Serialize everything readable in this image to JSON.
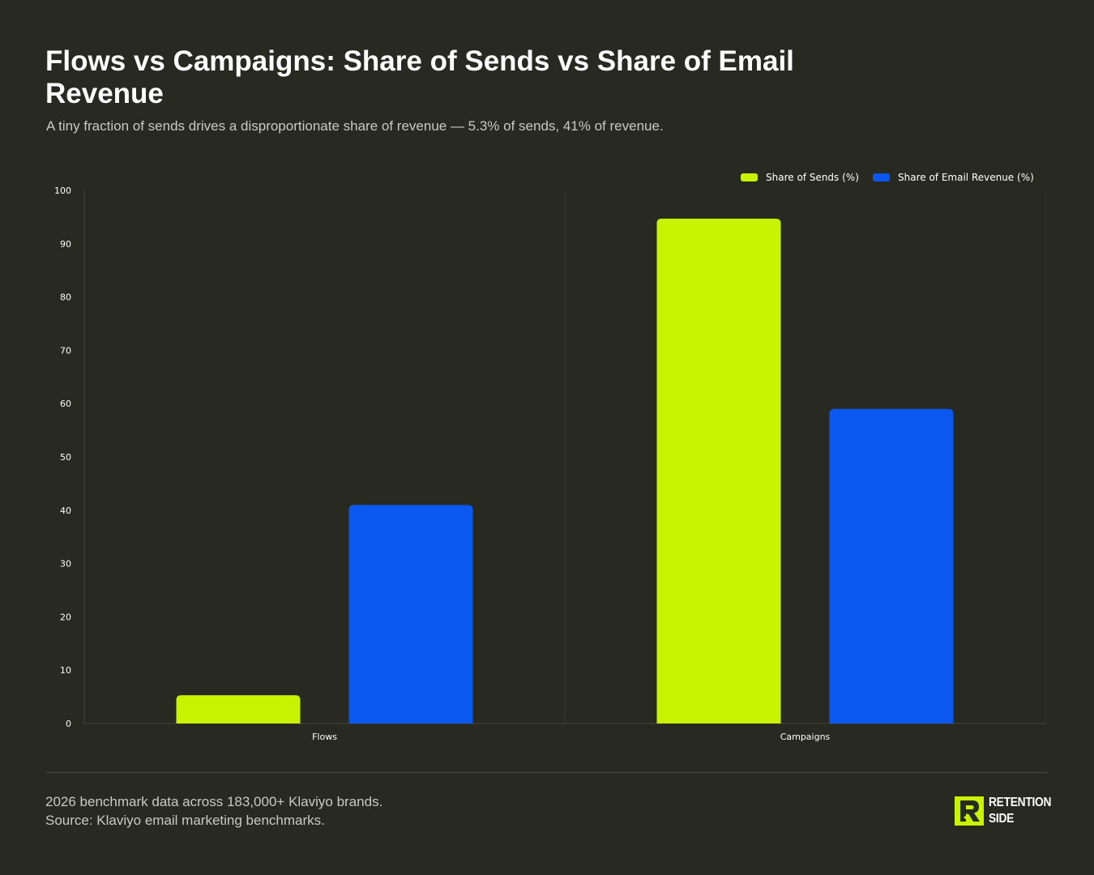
{
  "header": {
    "title": "Flows vs Campaigns: Share of Sends vs Share of Email Revenue",
    "subtitle": "A tiny fraction of sends drives a disproportionate share of revenue — 5.3% of sends, 41% of revenue."
  },
  "chart_data": {
    "type": "bar",
    "categories": [
      "Flows",
      "Campaigns"
    ],
    "series": [
      {
        "name": "Share of Sends (%)",
        "values": [
          5.3,
          94.7
        ],
        "color": "#c8f200"
      },
      {
        "name": "Share of Email Revenue (%)",
        "values": [
          41,
          59
        ],
        "color": "#0a58f0"
      }
    ],
    "ylim": [
      0,
      100
    ],
    "yticks": [
      0,
      10,
      20,
      30,
      40,
      50,
      60,
      70,
      80,
      90,
      100
    ],
    "xlabel": "",
    "ylabel": "",
    "legend": "top-right",
    "grid": false
  },
  "footer": {
    "note": "2026 benchmark data across 183,000+ Klaviyo brands.",
    "source": "Source: Klaviyo email marketing benchmarks.",
    "logo_line1": "RETENTION",
    "logo_line2": "SIDE"
  },
  "colors": {
    "background": "#282a22",
    "axis": "#45473c",
    "text_muted": "#c9cabf",
    "accent_lime": "#c8f200",
    "accent_blue": "#0a58f0"
  }
}
